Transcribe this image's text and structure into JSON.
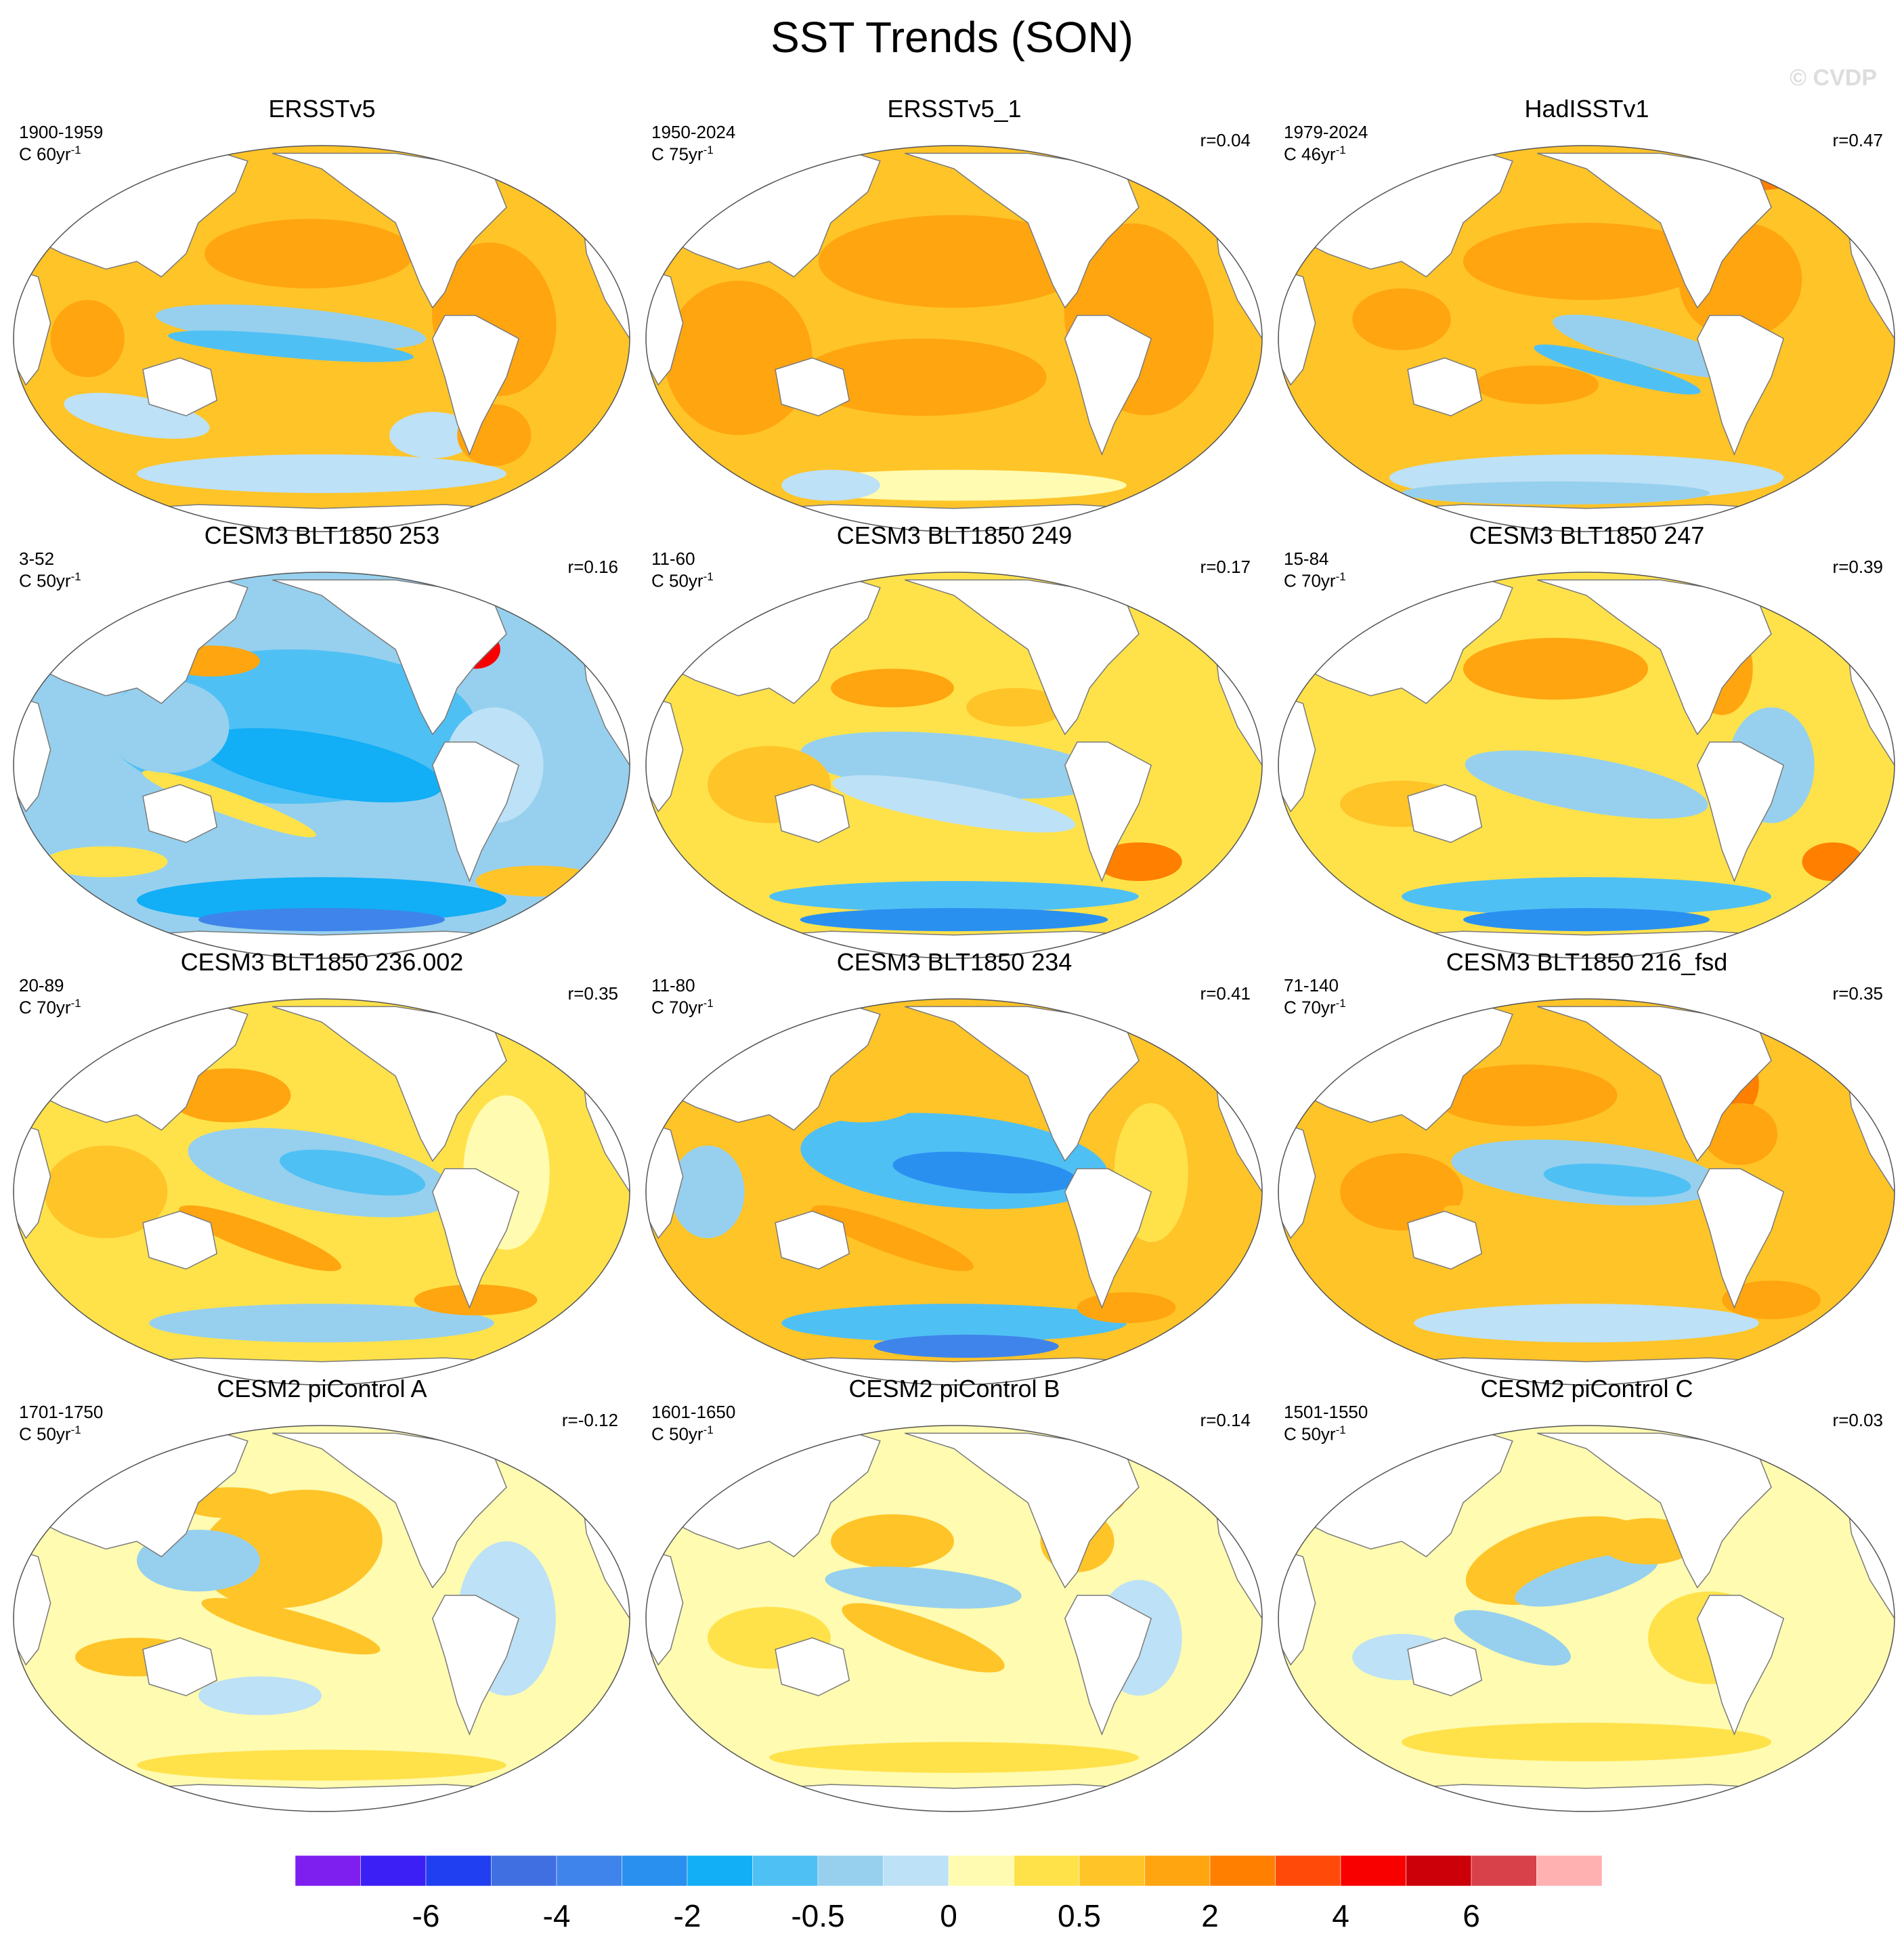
{
  "figure": {
    "title": "SST Trends (SON)",
    "watermark": "© CVDP"
  },
  "panels": [
    {
      "title": "ERSSTv5",
      "period": "1900-1959",
      "unit_prefix": "C 60yr",
      "unit_exp": "-1",
      "corr": "",
      "style": "obs_warm_pac_cool"
    },
    {
      "title": "ERSSTv5_1",
      "period": "1950-2024",
      "unit_prefix": "C 75yr",
      "unit_exp": "-1",
      "corr": "r=0.04",
      "style": "obs_warm_strong"
    },
    {
      "title": "HadISSTv1",
      "period": "1979-2024",
      "unit_prefix": "C 46yr",
      "unit_exp": "-1",
      "corr": "r=0.47",
      "style": "obs_lanina"
    },
    {
      "title": "CESM3 BLT1850 253",
      "period": "3-52",
      "unit_prefix": "C 50yr",
      "unit_exp": "-1",
      "corr": "r=0.16",
      "style": "cool_strong"
    },
    {
      "title": "CESM3 BLT1850 249",
      "period": "11-60",
      "unit_prefix": "C 50yr",
      "unit_exp": "-1",
      "corr": "r=0.17",
      "style": "mixed_atl_hot"
    },
    {
      "title": "CESM3 BLT1850 247",
      "period": "15-84",
      "unit_prefix": "C 70yr",
      "unit_exp": "-1",
      "corr": "r=0.39",
      "style": "warm_np_atl_hot"
    },
    {
      "title": "CESM3 BLT1850 236.002",
      "period": "20-89",
      "unit_prefix": "C 70yr",
      "unit_exp": "-1",
      "corr": "r=0.35",
      "style": "lanina_mixed"
    },
    {
      "title": "CESM3 BLT1850 234",
      "period": "11-80",
      "unit_prefix": "C 70yr",
      "unit_exp": "-1",
      "corr": "r=0.41",
      "style": "lanina_strong"
    },
    {
      "title": "CESM3 BLT1850 216_fsd",
      "period": "71-140",
      "unit_prefix": "C 70yr",
      "unit_exp": "-1",
      "corr": "r=0.35",
      "style": "lanina_atl_hot"
    },
    {
      "title": "CESM2 piControl A",
      "period": "1701-1750",
      "unit_prefix": "C 50yr",
      "unit_exp": "-1",
      "corr": "r=-0.12",
      "style": "weak_warm"
    },
    {
      "title": "CESM2 piControl B",
      "period": "1601-1650",
      "unit_prefix": "C 50yr",
      "unit_exp": "-1",
      "corr": "r=0.14",
      "style": "weak_mixed"
    },
    {
      "title": "CESM2 piControl C",
      "period": "1501-1550",
      "unit_prefix": "C 50yr",
      "unit_exp": "-1",
      "corr": "r=0.03",
      "style": "weak_elnino"
    }
  ],
  "colorbar": {
    "colors": [
      "#7f1fef",
      "#3b1ff5",
      "#1f3ff0",
      "#3f6fe0",
      "#3f84ea",
      "#2a90f0",
      "#12aef6",
      "#4fc0f4",
      "#96d0ee",
      "#bde1f6",
      "#fffbb0",
      "#ffe24a",
      "#ffc428",
      "#ffa510",
      "#ff7f00",
      "#ff4a0a",
      "#f80000",
      "#cc0008",
      "#d8404a",
      "#ffb0b0"
    ],
    "tick_labels": [
      "-6",
      "-4",
      "-2",
      "-0.5",
      "0",
      "0.5",
      "2",
      "4",
      "6"
    ]
  }
}
